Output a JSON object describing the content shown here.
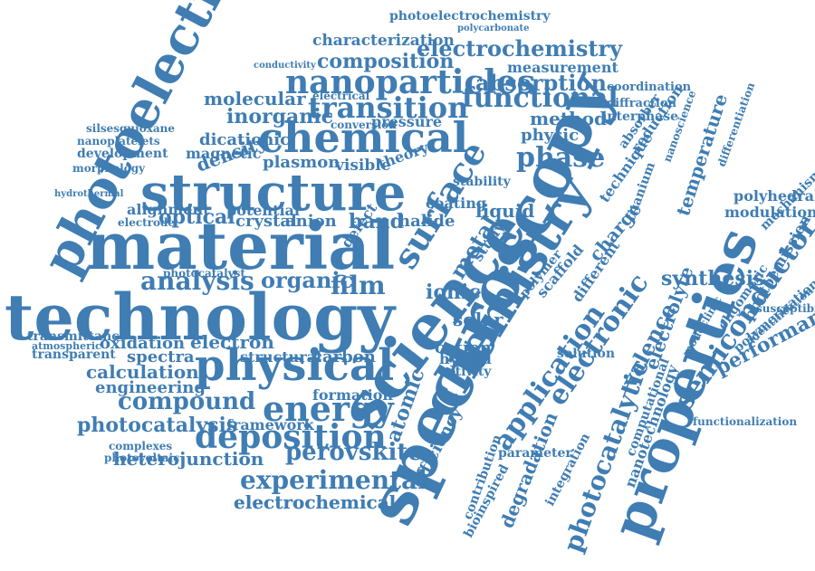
{
  "cloud": {
    "color": "#3f7db3",
    "words": [
      "technology",
      "material",
      "structure",
      "photoelectron",
      "spectroscopy",
      "science",
      "properties",
      "chemistry",
      "physical",
      "chemical",
      "nanoparticles",
      "transition",
      "surface",
      "energy",
      "deposition",
      "electrochemistry",
      "functional",
      "phase",
      "analysis",
      "experimental",
      "perovskite",
      "electrochemical",
      "compound",
      "photocatalysis",
      "heterojunction",
      "calculation",
      "engineering",
      "oxidation",
      "electron",
      "spectra",
      "transparent",
      "transmittance",
      "atmospheric",
      "photocatalytic",
      "application",
      "electronic",
      "semiconductor",
      "performance",
      "photoemission",
      "synthesis",
      "electrolyte",
      "charge",
      "composition",
      "characterization",
      "photoelectrochemistry",
      "polycarbonate",
      "measurement",
      "absorption",
      "coordination",
      "diffraction",
      "interphase",
      "temperature",
      "molecular",
      "inorganic",
      "dicationic",
      "magnetic",
      "density",
      "plasmon",
      "visible",
      "theory",
      "optical",
      "crystal",
      "anion",
      "band",
      "organic",
      "film",
      "ionic",
      "solar",
      "cation",
      "liquid",
      "metal",
      "carbon",
      "structural",
      "framework",
      "formation",
      "hybrid",
      "activity",
      "halide",
      "stability",
      "efficiency",
      "atomic",
      "valence",
      "degradation",
      "integration",
      "bioinspired",
      "nanotechnology",
      "mechanism",
      "modulation",
      "polyhedral",
      "scaffold",
      "polymer",
      "solution",
      "method",
      "physic",
      "reduction",
      "absorber",
      "differentiation",
      "electrochemical",
      "silsesquioxane",
      "nanoplatelets",
      "development",
      "morphology",
      "hydrothermal",
      "alignment",
      "electrode",
      "potential",
      "photocatalyst",
      "complexes",
      "photovoltaic",
      "conductivity",
      "electrical",
      "conversion",
      "pressure",
      "technique",
      "titanium",
      "nanoscience",
      "oligomeric",
      "susceptibility",
      "functionalization",
      "computational",
      "monoclinic",
      "identification",
      "polymerization",
      "contribution",
      "parameter",
      "different",
      "study",
      "defect",
      "coating"
    ]
  }
}
